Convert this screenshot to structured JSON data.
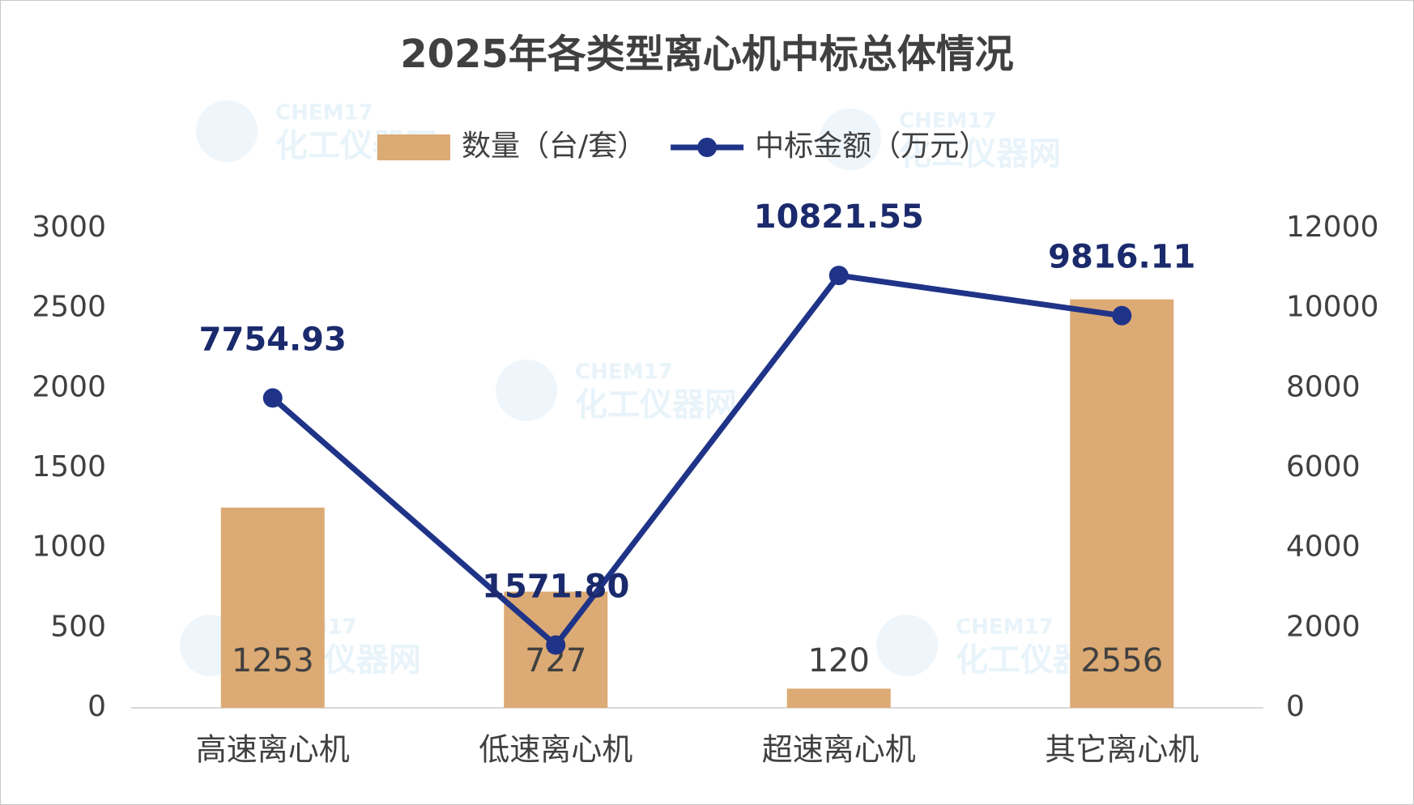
{
  "chart_data": {
    "type": "combo",
    "title": "2025年各类型离心机中标总体情况",
    "watermark": [
      "CHEM17",
      "化工仪器网"
    ],
    "categories": [
      "高速离心机",
      "低速离心机",
      "超速离心机",
      "其它离心机"
    ],
    "series": [
      {
        "name": "数量（台/套）",
        "type": "bar",
        "color": "#dcaa74",
        "values": [
          1253,
          727,
          120,
          2556
        ]
      },
      {
        "name": "中标金额（万元）",
        "type": "line",
        "axis": "y2",
        "color": "#1f3488",
        "values": [
          7754.93,
          1571.8,
          10821.55,
          9816.11
        ],
        "value_labels": [
          "7754.93",
          "1571.80",
          "10821.55",
          "9816.11"
        ]
      }
    ],
    "ylim": [
      0,
      3000
    ],
    "yticks": [
      0,
      500,
      1000,
      1500,
      2000,
      2500,
      3000
    ],
    "y2lim": [
      0,
      12000
    ],
    "y2ticks": [
      0,
      2000,
      4000,
      6000,
      8000,
      10000,
      12000
    ],
    "legend": "top"
  }
}
